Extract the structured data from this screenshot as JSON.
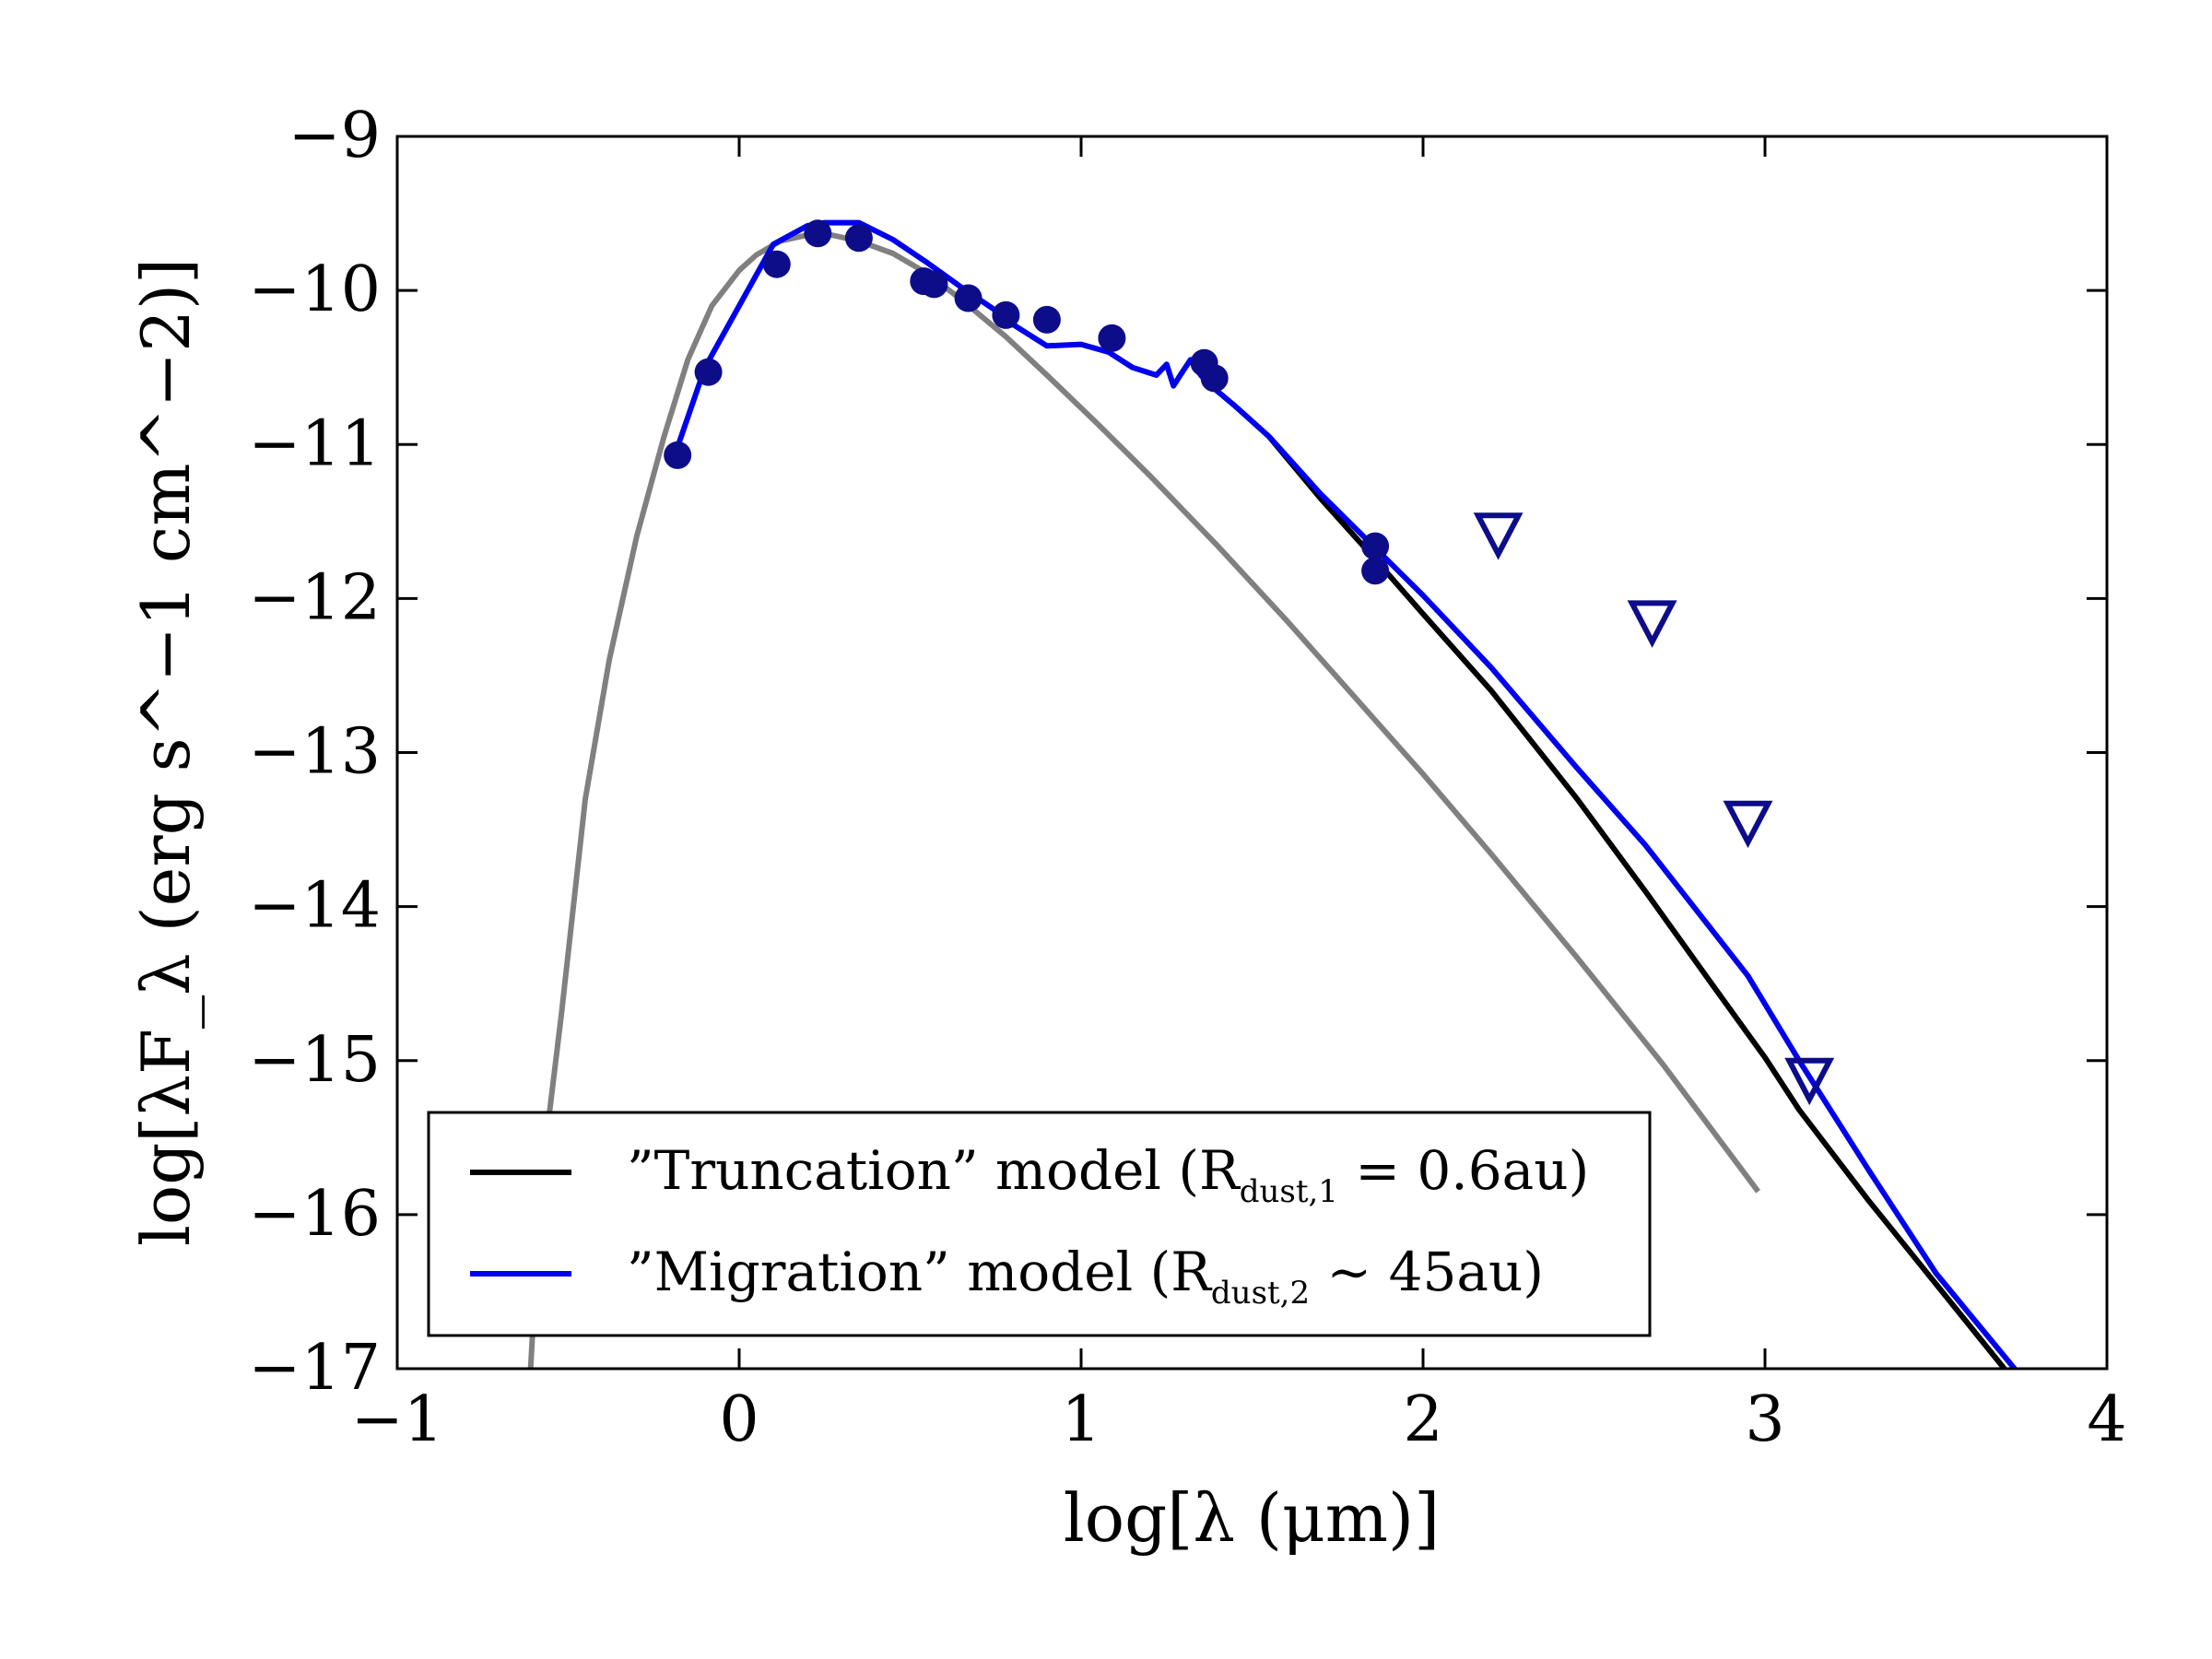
{
  "chart_data": {
    "type": "line",
    "title": "",
    "xlabel": "log[λ (μm)]",
    "ylabel": "log[λF_λ (erg s^−1 cm^−2)]",
    "xlim": [
      -1,
      4
    ],
    "ylim": [
      -17,
      -9
    ],
    "x_ticks": [
      -1,
      0,
      1,
      2,
      3,
      4
    ],
    "x_tick_labels": [
      "−1",
      "0",
      "1",
      "2",
      "3",
      "4"
    ],
    "y_ticks": [
      -9,
      -10,
      -11,
      -12,
      -13,
      -14,
      -15,
      -16,
      -17
    ],
    "y_tick_labels": [
      "−9",
      "−10",
      "−11",
      "−12",
      "−13",
      "−14",
      "−15",
      "−16",
      "−17"
    ],
    "grid": false,
    "legend": {
      "placement": "lower-left",
      "entries": [
        {
          "series": "truncation",
          "pre": "”Truncation” model (R",
          "sub": "dust,1",
          "post": " = 0.6au)"
        },
        {
          "series": "migration",
          "pre": "”Migration” model (R",
          "sub": "dust,2",
          "post": " ∼ 45au)"
        }
      ]
    },
    "series": [
      {
        "name": "stellar_photosphere",
        "color": "#808080",
        "in_legend": false,
        "x": [
          -0.61,
          -0.58,
          -0.52,
          -0.45,
          -0.38,
          -0.3,
          -0.22,
          -0.15,
          -0.08,
          0.0,
          0.05,
          0.12,
          0.2,
          0.27,
          0.35,
          0.45,
          0.55,
          0.65,
          0.78,
          0.9,
          1.05,
          1.2,
          1.4,
          1.6,
          1.8,
          2.0,
          2.2,
          2.45,
          2.7,
          2.98
        ],
        "y": [
          -17.0,
          -15.8,
          -14.7,
          -13.3,
          -12.4,
          -11.6,
          -10.95,
          -10.45,
          -10.1,
          -9.87,
          -9.77,
          -9.68,
          -9.64,
          -9.64,
          -9.68,
          -9.76,
          -9.89,
          -10.06,
          -10.3,
          -10.55,
          -10.87,
          -11.2,
          -11.66,
          -12.14,
          -12.64,
          -13.14,
          -13.66,
          -14.33,
          -15.02,
          -15.85
        ]
      },
      {
        "name": "truncation",
        "label": "”Truncation” model (Rdust,1 = 0.6au)",
        "color": "#000000",
        "x": [
          1.55,
          1.7,
          1.85,
          2.0,
          2.2,
          2.45,
          2.65,
          2.85,
          3.0,
          3.1,
          3.3,
          3.5,
          3.7
        ],
        "y": [
          -10.95,
          -11.35,
          -11.72,
          -12.1,
          -12.6,
          -13.3,
          -13.9,
          -14.52,
          -14.98,
          -15.32,
          -15.9,
          -16.45,
          -17.0
        ]
      },
      {
        "name": "migration",
        "label": "”Migration” model (Rdust,2 ∼ 45au)",
        "color": "#0000ee",
        "x": [
          -0.19,
          -0.1,
          0.0,
          0.1,
          0.2,
          0.25,
          0.35,
          0.45,
          0.55,
          0.65,
          0.75,
          0.8,
          0.9,
          1.0,
          1.08,
          1.15,
          1.22,
          1.25,
          1.27,
          1.29,
          1.32,
          1.35,
          1.38,
          1.45,
          1.55,
          1.7,
          1.85,
          2.0,
          2.2,
          2.45,
          2.65,
          2.95,
          3.1,
          3.3,
          3.5,
          3.73
        ],
        "y": [
          -11.08,
          -10.5,
          -10.1,
          -9.7,
          -9.58,
          -9.56,
          -9.56,
          -9.67,
          -9.82,
          -9.98,
          -10.13,
          -10.22,
          -10.36,
          -10.35,
          -10.4,
          -10.5,
          -10.55,
          -10.48,
          -10.62,
          -10.55,
          -10.45,
          -10.55,
          -10.62,
          -10.75,
          -10.95,
          -11.32,
          -11.65,
          -11.98,
          -12.45,
          -13.1,
          -13.6,
          -14.45,
          -15.0,
          -15.7,
          -16.38,
          -17.0
        ]
      }
    ],
    "data_points": {
      "name": "photometry",
      "marker": "circle",
      "color": "#0d0d8a",
      "x": [
        -0.18,
        -0.09,
        0.11,
        0.23,
        0.35,
        0.54,
        0.57,
        0.67,
        0.78,
        0.9,
        1.09,
        1.36,
        1.39,
        1.86,
        1.86
      ],
      "y": [
        -11.07,
        -10.53,
        -9.83,
        -9.63,
        -9.66,
        -9.94,
        -9.96,
        -10.05,
        -10.16,
        -10.19,
        -10.31,
        -10.47,
        -10.57,
        -11.66,
        -11.82
      ]
    },
    "upper_limits": {
      "name": "upper_limits",
      "marker": "triangle-down-open",
      "color": "#0d0d8a",
      "x": [
        2.22,
        2.67,
        2.95,
        3.13
      ],
      "y": [
        -11.58,
        -12.15,
        -13.45,
        -15.12
      ]
    }
  }
}
